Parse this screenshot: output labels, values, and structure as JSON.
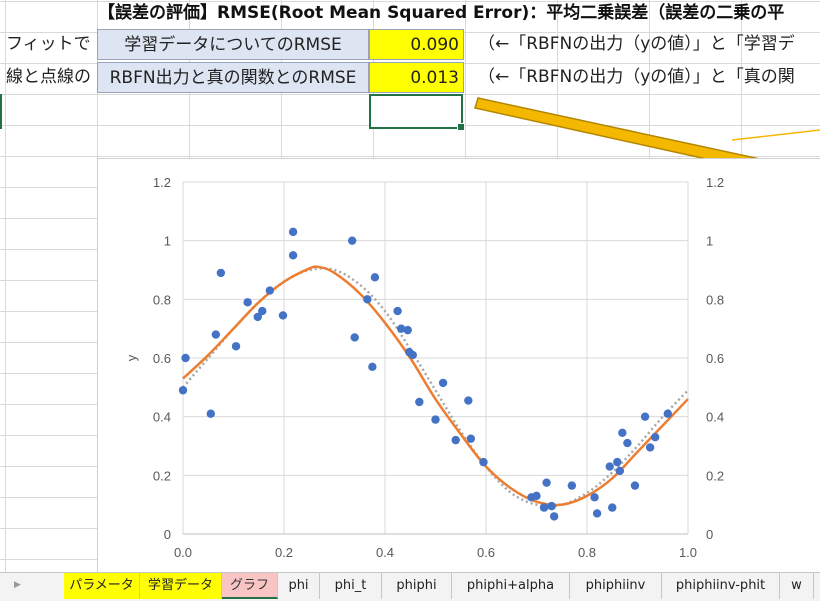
{
  "sheet": {
    "title": "【誤差の評価】RMSE(Root Mean Squared Error)：平均二乗誤差（誤差の二乗の平",
    "rows": [
      {
        "left_text": "フィットで",
        "label": "学習データについてのRMSE",
        "value": "0.090",
        "note": "（←「RBFNの出力（yの値）」と「学習デ"
      },
      {
        "left_text": "線と点線の",
        "label": "RBFN出力と真の関数とのRMSE",
        "value": "0.013",
        "note": "（←「RBFNの出力（yの値）」と「真の関"
      }
    ],
    "colors": {
      "value_fill": "#ffff00",
      "label_fill": "#dde4f2",
      "arrow_fill": "#f5b800"
    }
  },
  "chart_data": {
    "type": "scatter",
    "title": "",
    "xlabel": "",
    "ylabel": "y",
    "xlim": [
      0,
      1
    ],
    "ylim": [
      0,
      1.2
    ],
    "x_ticks": [
      "0.0",
      "0.2",
      "0.4",
      "0.6",
      "0.8",
      "1.0"
    ],
    "y_ticks": [
      "0",
      "0.2",
      "0.4",
      "0.6",
      "0.8",
      "1",
      "1.2"
    ],
    "right_axis_ticks": [
      "0",
      "0.2",
      "0.4",
      "0.6",
      "0.8",
      "1",
      "1.2"
    ],
    "grid": true,
    "legend": "none",
    "series": [
      {
        "kind": "points",
        "color": "#4472c4",
        "x": [
          0.0,
          0.005,
          0.055,
          0.065,
          0.075,
          0.105,
          0.128,
          0.148,
          0.157,
          0.172,
          0.198,
          0.218,
          0.218,
          0.335,
          0.34,
          0.365,
          0.375,
          0.38,
          0.425,
          0.432,
          0.445,
          0.448,
          0.455,
          0.468,
          0.5,
          0.515,
          0.54,
          0.565,
          0.57,
          0.595,
          0.69,
          0.7,
          0.715,
          0.72,
          0.73,
          0.735,
          0.77,
          0.815,
          0.82,
          0.845,
          0.85,
          0.86,
          0.865,
          0.87,
          0.88,
          0.895,
          0.915,
          0.925,
          0.935,
          0.96
        ],
        "y": [
          0.49,
          0.6,
          0.41,
          0.68,
          0.89,
          0.64,
          0.79,
          0.74,
          0.76,
          0.83,
          0.745,
          0.95,
          1.03,
          1.0,
          0.67,
          0.8,
          0.57,
          0.875,
          0.76,
          0.7,
          0.695,
          0.62,
          0.61,
          0.45,
          0.39,
          0.515,
          0.32,
          0.455,
          0.325,
          0.245,
          0.125,
          0.13,
          0.09,
          0.175,
          0.095,
          0.06,
          0.165,
          0.125,
          0.07,
          0.23,
          0.09,
          0.245,
          0.215,
          0.345,
          0.31,
          0.165,
          0.4,
          0.295,
          0.33,
          0.41
        ]
      },
      {
        "kind": "line",
        "color": "#ed7d31",
        "style": "solid",
        "x": [
          0.0,
          0.05,
          0.1,
          0.15,
          0.2,
          0.25,
          0.27,
          0.3,
          0.35,
          0.4,
          0.45,
          0.5,
          0.55,
          0.6,
          0.65,
          0.7,
          0.75,
          0.8,
          0.85,
          0.9,
          0.95,
          1.0
        ],
        "y": [
          0.53,
          0.61,
          0.7,
          0.79,
          0.86,
          0.905,
          0.91,
          0.89,
          0.82,
          0.72,
          0.6,
          0.46,
          0.34,
          0.23,
          0.155,
          0.11,
          0.1,
          0.13,
          0.19,
          0.28,
          0.37,
          0.46
        ]
      },
      {
        "kind": "line",
        "color": "#a6a6a6",
        "style": "dotted",
        "x": [
          0.0,
          0.05,
          0.1,
          0.15,
          0.2,
          0.25,
          0.3,
          0.35,
          0.4,
          0.45,
          0.5,
          0.55,
          0.6,
          0.65,
          0.7,
          0.75,
          0.8,
          0.85,
          0.9,
          0.95,
          1.0
        ],
        "y": [
          0.5,
          0.6,
          0.7,
          0.79,
          0.86,
          0.9,
          0.9,
          0.85,
          0.76,
          0.63,
          0.49,
          0.35,
          0.23,
          0.14,
          0.1,
          0.1,
          0.14,
          0.21,
          0.3,
          0.4,
          0.49
        ]
      }
    ]
  },
  "tabs": {
    "items": [
      {
        "label": "パラメータ",
        "style": "yellow"
      },
      {
        "label": "学習データ",
        "style": "yellow"
      },
      {
        "label": "グラフ",
        "style": "active"
      },
      {
        "label": "phi",
        "style": "plain"
      },
      {
        "label": "phi_t",
        "style": "plain"
      },
      {
        "label": "phiphi",
        "style": "plain"
      },
      {
        "label": "phiphi+alpha",
        "style": "plain"
      },
      {
        "label": "phiphiinv",
        "style": "plain"
      },
      {
        "label": "phiphiinv-phit",
        "style": "plain"
      },
      {
        "label": "w",
        "style": "plain"
      }
    ]
  }
}
